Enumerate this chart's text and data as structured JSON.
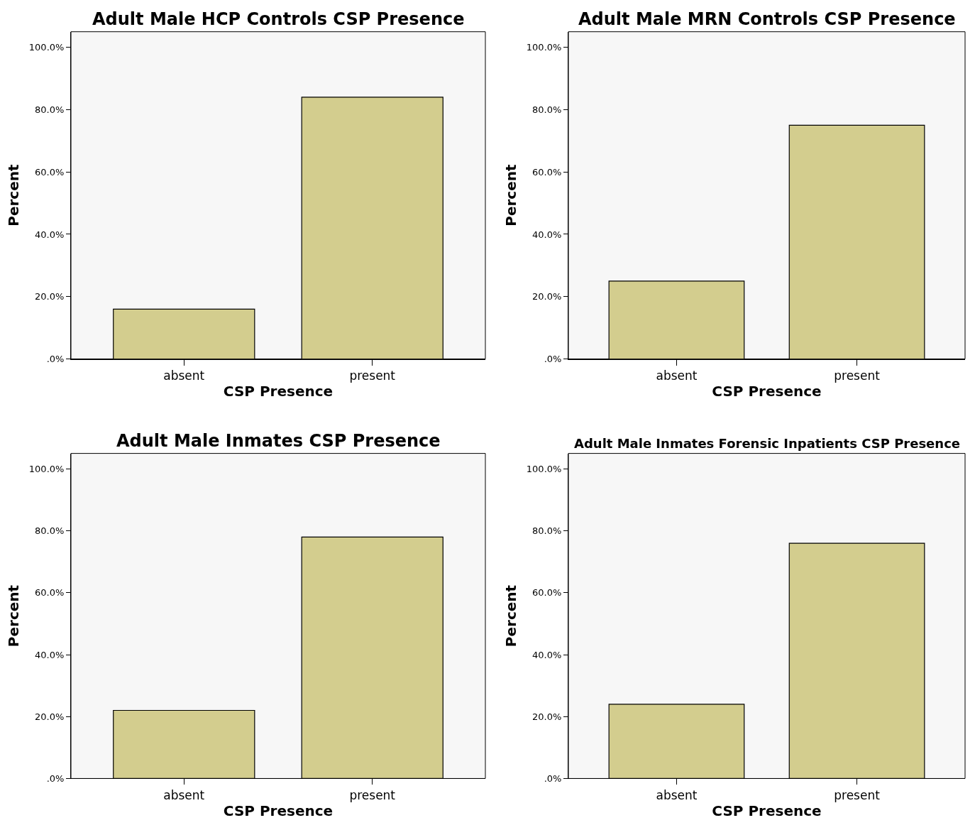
{
  "chart_data": [
    {
      "type": "bar",
      "title": "Adult Male HCP Controls CSP Presence",
      "xlabel": "CSP Presence",
      "ylabel": "Percent",
      "categories": [
        "absent",
        "present"
      ],
      "values": [
        16,
        84
      ],
      "color": "#d3cd8e",
      "ylim": [
        0,
        105
      ],
      "yticks": [
        {
          "value": 0,
          "label": ".0%"
        },
        {
          "value": 20,
          "label": "20.0%"
        },
        {
          "value": 40,
          "label": "40.0%"
        },
        {
          "value": 60,
          "label": "60.0%"
        },
        {
          "value": 80,
          "label": "80.0%"
        },
        {
          "value": 100,
          "label": "100.0%"
        }
      ],
      "grid": false,
      "legend": false
    },
    {
      "type": "bar",
      "title": "Adult Male MRN Controls CSP Presence",
      "xlabel": "CSP Presence",
      "ylabel": "Percent",
      "categories": [
        "absent",
        "present"
      ],
      "values": [
        25,
        75
      ],
      "color": "#d3cd8e",
      "ylim": [
        0,
        105
      ],
      "yticks": [
        {
          "value": 0,
          "label": ".0%"
        },
        {
          "value": 20,
          "label": "20.0%"
        },
        {
          "value": 40,
          "label": "40.0%"
        },
        {
          "value": 60,
          "label": "60.0%"
        },
        {
          "value": 80,
          "label": "80.0%"
        },
        {
          "value": 100,
          "label": "100.0%"
        }
      ],
      "grid": false,
      "legend": false
    },
    {
      "type": "bar",
      "title": "Adult Male Inmates CSP Presence",
      "xlabel": "CSP Presence",
      "ylabel": "Percent",
      "categories": [
        "absent",
        "present"
      ],
      "values": [
        22,
        78
      ],
      "color": "#d3cd8e",
      "ylim": [
        0,
        105
      ],
      "yticks": [
        {
          "value": 0,
          "label": ".0%"
        },
        {
          "value": 20,
          "label": "20.0%"
        },
        {
          "value": 40,
          "label": "40.0%"
        },
        {
          "value": 60,
          "label": "60.0%"
        },
        {
          "value": 80,
          "label": "80.0%"
        },
        {
          "value": 100,
          "label": "100.0%"
        }
      ],
      "grid": false,
      "legend": false
    },
    {
      "type": "bar",
      "title": "Adult Male Inmates Forensic Inpatients CSP Presence",
      "xlabel": "CSP Presence",
      "ylabel": "Percent",
      "categories": [
        "absent",
        "present"
      ],
      "values": [
        24,
        76
      ],
      "color": "#d3cd8e",
      "ylim": [
        0,
        105
      ],
      "yticks": [
        {
          "value": 0,
          "label": ".0%"
        },
        {
          "value": 20,
          "label": "20.0%"
        },
        {
          "value": 40,
          "label": "40.0%"
        },
        {
          "value": 60,
          "label": "60.0%"
        },
        {
          "value": 80,
          "label": "80.0%"
        },
        {
          "value": 100,
          "label": "100.0%"
        }
      ],
      "grid": false,
      "legend": false
    }
  ]
}
